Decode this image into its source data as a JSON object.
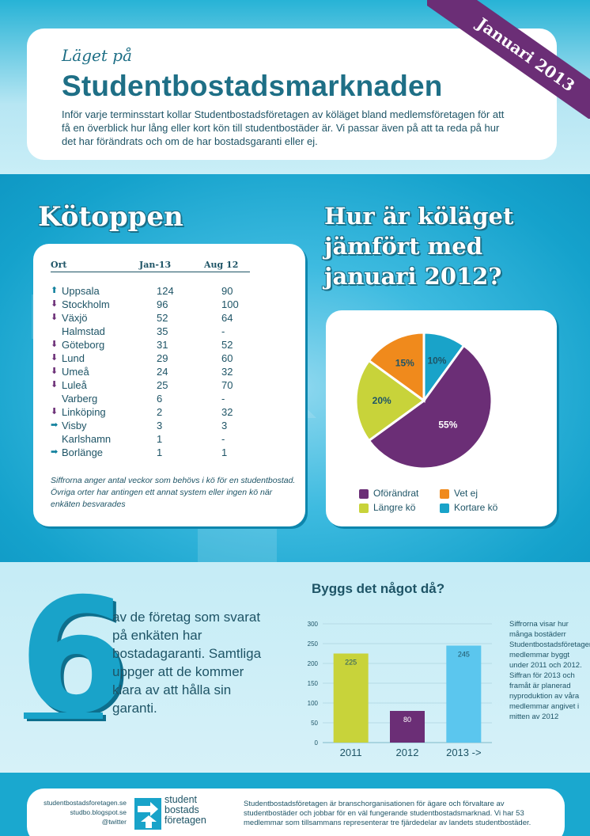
{
  "header": {
    "kicker": "Läget på",
    "title": "Studentbostadsmarknaden",
    "intro": "Inför varje terminsstart kollar Studentbostadsföretagen av köläget bland medlemsföretagen för att få en överblick hur lång eller kort kön till studentbostäder är. Vi passar även på att ta reda på hur det har förändrats och om de har bostadsgaranti eller ej.",
    "ribbon": "Januari 2013"
  },
  "queue": {
    "heading": "Kötoppen",
    "columns": [
      "Ort",
      "Jan-13",
      "Aug 12"
    ],
    "rows": [
      {
        "trend": "up",
        "city": "Uppsala",
        "jan": "124",
        "aug": "90"
      },
      {
        "trend": "down",
        "city": "Stockholm",
        "jan": "96",
        "aug": "100"
      },
      {
        "trend": "down",
        "city": "Växjö",
        "jan": "52",
        "aug": "64"
      },
      {
        "trend": "none",
        "city": "Halmstad",
        "jan": "35",
        "aug": "-"
      },
      {
        "trend": "down",
        "city": "Göteborg",
        "jan": "31",
        "aug": "52"
      },
      {
        "trend": "down",
        "city": "Lund",
        "jan": "29",
        "aug": "60"
      },
      {
        "trend": "down",
        "city": "Umeå",
        "jan": "24",
        "aug": "32"
      },
      {
        "trend": "down",
        "city": "Luleå",
        "jan": "25",
        "aug": "70"
      },
      {
        "trend": "none",
        "city": "Varberg",
        "jan": "6",
        "aug": "-"
      },
      {
        "trend": "down",
        "city": "Linköping",
        "jan": "2",
        "aug": "32"
      },
      {
        "trend": "same",
        "city": "Visby",
        "jan": "3",
        "aug": "3"
      },
      {
        "trend": "none",
        "city": "Karlshamn",
        "jan": "1",
        "aug": "-"
      },
      {
        "trend": "same",
        "city": "Borlänge",
        "jan": "1",
        "aug": "1"
      }
    ],
    "note": "Siffrorna anger antal veckor som behövs i kö för en studentbostad. Övriga orter har antingen ett annat system eller ingen kö när enkäten besvarades"
  },
  "comparison": {
    "heading": "Hur är köläget jämfört med januari 2012?"
  },
  "guarantee": {
    "number": "6",
    "text": "av de företag som svarat på enkäten har bostadagaranti. Samtliga uppger att de kommer klara av att hålla sin garanti."
  },
  "building": {
    "heading": "Byggs det något då?",
    "note": "Siffrorna visar hur många bostäderr Studentbostadsföretagens medlemmar byggt under 2011 och 2012. Siffran för 2013 och framåt är planerad nyproduktion av våra medlemmar angivet i mitten av 2012"
  },
  "chart_data": [
    {
      "type": "pie",
      "title": "Hur är köläget jämfört med januari 2012?",
      "labels": [
        "Oförändrat",
        "Vet ej",
        "Längre kö",
        "Kortare kö"
      ],
      "values": [
        55,
        15,
        20,
        10
      ],
      "value_labels": [
        "55%",
        "15%",
        "20%",
        "10%"
      ],
      "colors": [
        "#6b2e76",
        "#f08a1c",
        "#c8d33a",
        "#19a3c9"
      ],
      "legend_placement": "bottom"
    },
    {
      "type": "bar",
      "title": "Byggs det något då?",
      "categories": [
        "2011",
        "2012",
        "2013 ->"
      ],
      "values": [
        225,
        80,
        245
      ],
      "colors": [
        "#c8d33a",
        "#6b2e76",
        "#5bc6ee"
      ],
      "ylim": [
        0,
        300
      ],
      "yticks": [
        0,
        50,
        100,
        150,
        200,
        250,
        300
      ],
      "grid": true
    }
  ],
  "footer": {
    "links": [
      "studentbostadsforetagen.se",
      "studbo.blogspot.se",
      "@twitter"
    ],
    "logo_lines": [
      "student",
      "bostads",
      "företagen"
    ],
    "about": "Studentbostadsföretagen är branschorganisationen för ägare och förvaltare av studentbostäder och jobbar för en väl fungerande studentbostadsmarknad. Vi har 53 medlemmar som tillsammans representerar tre fjärdedelar av landets studentbostäder."
  }
}
